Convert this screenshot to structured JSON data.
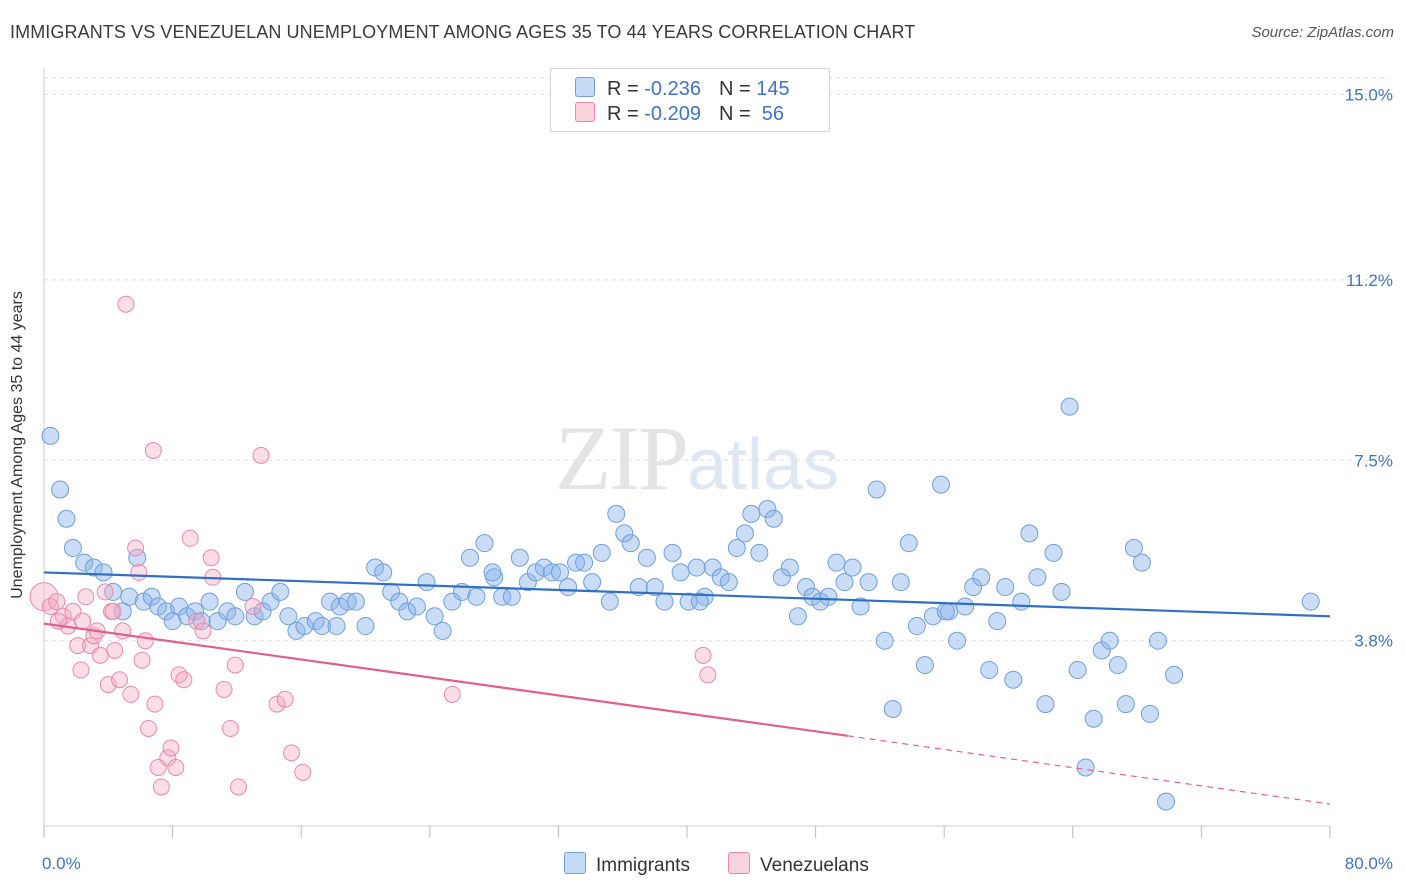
{
  "header": {
    "title": "IMMIGRANTS VS VENEZUELAN UNEMPLOYMENT AMONG AGES 35 TO 44 YEARS CORRELATION CHART",
    "source": "Source: ZipAtlas.com"
  },
  "watermark": {
    "zip": "ZIP",
    "atlas": "atlas"
  },
  "legend": {
    "rows": [
      {
        "r_label": "R = ",
        "r_value": "-0.236",
        "n_label": "N = ",
        "n_value": "145",
        "color": "#a8c8f0",
        "border": "#6f9fd8"
      },
      {
        "r_label": "R = ",
        "r_value": "-0.209",
        "n_label": "N = ",
        "n_value": " 56",
        "color": "#f7bfd0",
        "border": "#e88aa8"
      }
    ]
  },
  "bottom_legend": {
    "immigrants": "Immigrants",
    "venezuelans": "Venezuelans"
  },
  "colors": {
    "blue_fill": "rgba(140,180,235,0.45)",
    "blue_stroke": "#6f9fd8",
    "blue_line": "#2f6fc6",
    "pink_fill": "rgba(245,170,195,0.40)",
    "pink_stroke": "#e88aa8",
    "pink_line": "#e0608a",
    "grid": "#dedede"
  },
  "chart_data": {
    "type": "scatter",
    "title": "IMMIGRANTS VS VENEZUELAN UNEMPLOYMENT AMONG AGES 35 TO 44 YEARS CORRELATION CHART",
    "xlabel": "",
    "ylabel": "Unemployment Among Ages 35 to 44 years",
    "xlim": [
      0,
      80
    ],
    "ylim": [
      0,
      15.4
    ],
    "x_tick_labels": [
      "0.0%",
      "80.0%"
    ],
    "y_ticks": [
      3.8,
      7.5,
      11.2,
      15.0
    ],
    "y_tick_labels": [
      "3.8%",
      "7.5%",
      "11.2%",
      "15.0%"
    ],
    "grid": true,
    "legend_position": "top-center",
    "series": [
      {
        "name": "Immigrants",
        "trend": {
          "x0": 0,
          "y0": 5.2,
          "x1": 80,
          "y1": 4.3
        },
        "points": [
          [
            0.4,
            8.0
          ],
          [
            1.0,
            6.9
          ],
          [
            1.4,
            6.3
          ],
          [
            1.8,
            5.7
          ],
          [
            2.5,
            5.4
          ],
          [
            3.1,
            5.3
          ],
          [
            3.7,
            5.2
          ],
          [
            4.3,
            4.8
          ],
          [
            4.9,
            4.4
          ],
          [
            5.3,
            4.7
          ],
          [
            5.8,
            5.5
          ],
          [
            6.2,
            4.6
          ],
          [
            6.7,
            4.7
          ],
          [
            7.1,
            4.5
          ],
          [
            7.6,
            4.4
          ],
          [
            8.0,
            4.2
          ],
          [
            8.4,
            4.5
          ],
          [
            8.9,
            4.3
          ],
          [
            9.4,
            4.4
          ],
          [
            9.8,
            4.2
          ],
          [
            10.3,
            4.6
          ],
          [
            10.8,
            4.2
          ],
          [
            11.4,
            4.4
          ],
          [
            11.9,
            4.3
          ],
          [
            12.5,
            4.8
          ],
          [
            13.1,
            4.3
          ],
          [
            13.6,
            4.4
          ],
          [
            14.1,
            4.6
          ],
          [
            14.7,
            4.8
          ],
          [
            15.2,
            4.3
          ],
          [
            15.7,
            4.0
          ],
          [
            16.2,
            4.1
          ],
          [
            16.9,
            4.2
          ],
          [
            17.3,
            4.1
          ],
          [
            17.8,
            4.6
          ],
          [
            18.4,
            4.5
          ],
          [
            18.9,
            4.6
          ],
          [
            19.4,
            4.6
          ],
          [
            20.0,
            4.1
          ],
          [
            20.6,
            5.3
          ],
          [
            21.1,
            5.2
          ],
          [
            21.6,
            4.8
          ],
          [
            22.1,
            4.6
          ],
          [
            22.6,
            4.4
          ],
          [
            23.2,
            4.5
          ],
          [
            23.8,
            5.0
          ],
          [
            24.3,
            4.3
          ],
          [
            24.8,
            4.0
          ],
          [
            25.4,
            4.6
          ],
          [
            26.0,
            4.8
          ],
          [
            26.5,
            5.5
          ],
          [
            26.9,
            4.7
          ],
          [
            27.4,
            5.8
          ],
          [
            28.0,
            5.1
          ],
          [
            28.5,
            4.7
          ],
          [
            29.1,
            4.7
          ],
          [
            29.6,
            5.5
          ],
          [
            30.1,
            5.0
          ],
          [
            30.6,
            5.2
          ],
          [
            31.1,
            5.3
          ],
          [
            31.6,
            5.2
          ],
          [
            32.1,
            5.2
          ],
          [
            32.6,
            4.9
          ],
          [
            33.1,
            5.4
          ],
          [
            33.6,
            5.4
          ],
          [
            34.1,
            5.0
          ],
          [
            34.7,
            5.6
          ],
          [
            35.2,
            4.6
          ],
          [
            35.6,
            6.4
          ],
          [
            36.1,
            6.0
          ],
          [
            36.5,
            5.8
          ],
          [
            37.0,
            4.9
          ],
          [
            37.5,
            5.5
          ],
          [
            38.0,
            4.9
          ],
          [
            38.6,
            4.6
          ],
          [
            39.1,
            5.6
          ],
          [
            39.6,
            5.2
          ],
          [
            40.1,
            4.6
          ],
          [
            40.6,
            5.3
          ],
          [
            41.1,
            4.7
          ],
          [
            41.6,
            5.3
          ],
          [
            42.1,
            5.1
          ],
          [
            42.6,
            5.0
          ],
          [
            43.1,
            5.7
          ],
          [
            43.6,
            6.0
          ],
          [
            44.0,
            6.4
          ],
          [
            44.5,
            5.6
          ],
          [
            45.0,
            6.5
          ],
          [
            45.4,
            6.3
          ],
          [
            45.9,
            5.1
          ],
          [
            46.4,
            5.3
          ],
          [
            46.9,
            4.3
          ],
          [
            47.4,
            4.9
          ],
          [
            47.8,
            4.7
          ],
          [
            48.3,
            4.6
          ],
          [
            48.8,
            4.7
          ],
          [
            49.3,
            5.4
          ],
          [
            49.8,
            5.0
          ],
          [
            50.3,
            5.3
          ],
          [
            50.8,
            4.5
          ],
          [
            51.3,
            5.0
          ],
          [
            51.8,
            6.9
          ],
          [
            52.3,
            3.8
          ],
          [
            52.8,
            2.4
          ],
          [
            53.3,
            5.0
          ],
          [
            53.8,
            5.8
          ],
          [
            54.3,
            4.1
          ],
          [
            54.8,
            3.3
          ],
          [
            55.3,
            4.3
          ],
          [
            55.8,
            7.0
          ],
          [
            56.3,
            4.4
          ],
          [
            56.8,
            3.8
          ],
          [
            57.3,
            4.5
          ],
          [
            57.8,
            4.9
          ],
          [
            58.3,
            5.1
          ],
          [
            58.8,
            3.2
          ],
          [
            59.3,
            4.2
          ],
          [
            59.8,
            4.9
          ],
          [
            60.3,
            3.0
          ],
          [
            60.8,
            4.6
          ],
          [
            61.3,
            6.0
          ],
          [
            61.8,
            5.1
          ],
          [
            62.3,
            2.5
          ],
          [
            62.8,
            5.6
          ],
          [
            63.3,
            4.8
          ],
          [
            63.8,
            8.6
          ],
          [
            64.3,
            3.2
          ],
          [
            64.8,
            1.2
          ],
          [
            65.3,
            2.2
          ],
          [
            65.8,
            3.6
          ],
          [
            66.3,
            3.8
          ],
          [
            66.8,
            3.3
          ],
          [
            67.3,
            2.5
          ],
          [
            67.8,
            5.7
          ],
          [
            68.3,
            5.4
          ],
          [
            68.8,
            2.3
          ],
          [
            69.3,
            3.8
          ],
          [
            69.8,
            0.5
          ],
          [
            70.3,
            3.1
          ],
          [
            78.8,
            4.6
          ],
          [
            56.1,
            4.4
          ],
          [
            40.8,
            4.6
          ],
          [
            27.9,
            5.2
          ],
          [
            18.2,
            4.1
          ]
        ]
      },
      {
        "name": "Venezuelans",
        "trend": {
          "x0": 0,
          "y0": 4.15,
          "x1": 50,
          "y1": 1.85
        },
        "trend_extension": {
          "x0": 50,
          "y0": 1.85,
          "x1": 80,
          "y1": 0.45
        },
        "points": [
          [
            0.0,
            4.7
          ],
          [
            0.4,
            4.5
          ],
          [
            0.8,
            4.6
          ],
          [
            1.2,
            4.3
          ],
          [
            1.5,
            4.1
          ],
          [
            1.8,
            4.4
          ],
          [
            2.1,
            3.7
          ],
          [
            2.3,
            3.2
          ],
          [
            2.6,
            4.7
          ],
          [
            2.9,
            3.7
          ],
          [
            3.1,
            3.9
          ],
          [
            3.3,
            4.0
          ],
          [
            3.5,
            3.5
          ],
          [
            3.8,
            4.8
          ],
          [
            4.0,
            2.9
          ],
          [
            4.2,
            4.4
          ],
          [
            4.4,
            3.6
          ],
          [
            4.7,
            3.0
          ],
          [
            4.9,
            4.0
          ],
          [
            5.1,
            10.7
          ],
          [
            5.4,
            2.7
          ],
          [
            5.7,
            5.7
          ],
          [
            5.9,
            5.2
          ],
          [
            6.1,
            3.4
          ],
          [
            6.3,
            3.8
          ],
          [
            6.5,
            2.0
          ],
          [
            6.8,
            7.7
          ],
          [
            6.9,
            2.5
          ],
          [
            7.1,
            1.2
          ],
          [
            7.3,
            0.8
          ],
          [
            7.7,
            1.4
          ],
          [
            7.9,
            1.6
          ],
          [
            8.2,
            1.2
          ],
          [
            8.4,
            3.1
          ],
          [
            8.7,
            3.0
          ],
          [
            9.1,
            5.9
          ],
          [
            9.5,
            4.2
          ],
          [
            9.9,
            4.0
          ],
          [
            10.4,
            5.5
          ],
          [
            10.5,
            5.1
          ],
          [
            11.2,
            2.8
          ],
          [
            11.6,
            2.0
          ],
          [
            11.9,
            3.3
          ],
          [
            12.1,
            0.8
          ],
          [
            13.0,
            4.5
          ],
          [
            13.5,
            7.6
          ],
          [
            14.5,
            2.5
          ],
          [
            15.0,
            2.6
          ],
          [
            15.4,
            1.5
          ],
          [
            16.1,
            1.1
          ],
          [
            25.4,
            2.7
          ],
          [
            41.0,
            3.5
          ],
          [
            41.3,
            3.1
          ],
          [
            2.4,
            4.2
          ],
          [
            0.9,
            4.2
          ],
          [
            4.3,
            4.4
          ]
        ]
      }
    ]
  }
}
